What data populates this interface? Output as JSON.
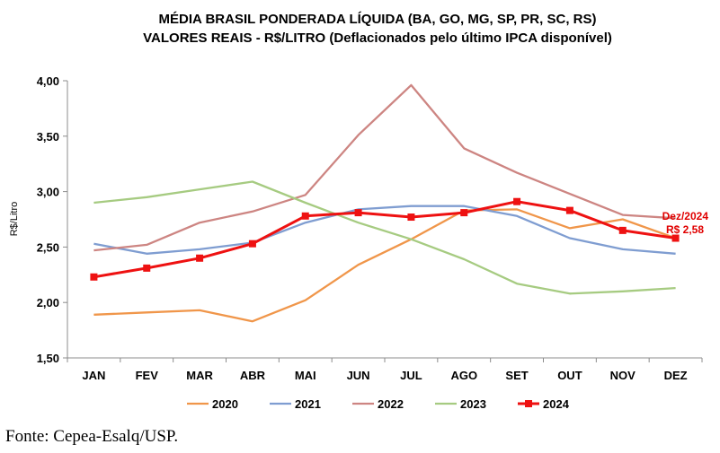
{
  "chart_data": {
    "type": "line",
    "title": "MÉDIA BRASIL PONDERADA LÍQUIDA (BA, GO, MG, SP, PR, SC, RS)",
    "subtitle": "VALORES REAIS - R$/LITRO (Deflacionados  pelo último IPCA disponível)",
    "xlabel": "",
    "ylabel": "R$/Litro",
    "ylim": [
      1.5,
      4.0
    ],
    "yticks": [
      "1,50",
      "2,00",
      "2,50",
      "3,00",
      "3,50",
      "4,00"
    ],
    "categories": [
      "JAN",
      "FEV",
      "MAR",
      "ABR",
      "MAI",
      "JUN",
      "JUL",
      "AGO",
      "SET",
      "OUT",
      "NOV",
      "DEZ"
    ],
    "grid": false,
    "legend_position": "bottom",
    "series": [
      {
        "name": "2020",
        "color": "#f0964a",
        "values": [
          1.89,
          1.91,
          1.93,
          1.83,
          2.02,
          2.34,
          2.57,
          2.83,
          2.84,
          2.67,
          2.75,
          2.58
        ]
      },
      {
        "name": "2021",
        "color": "#7f9dd1",
        "values": [
          2.53,
          2.44,
          2.48,
          2.54,
          2.72,
          2.84,
          2.87,
          2.87,
          2.78,
          2.58,
          2.48,
          2.44
        ]
      },
      {
        "name": "2022",
        "color": "#cd8582",
        "values": [
          2.47,
          2.52,
          2.72,
          2.82,
          2.97,
          3.51,
          3.96,
          3.39,
          3.17,
          2.98,
          2.79,
          2.76
        ]
      },
      {
        "name": "2023",
        "color": "#a6cb81",
        "values": [
          2.9,
          2.95,
          3.02,
          3.09,
          2.9,
          2.72,
          2.57,
          2.39,
          2.17,
          2.08,
          2.1,
          2.13
        ]
      },
      {
        "name": "2024",
        "color": "#ee1111",
        "markers": true,
        "values": [
          2.23,
          2.31,
          2.4,
          2.53,
          2.78,
          2.81,
          2.77,
          2.81,
          2.91,
          2.83,
          2.65,
          2.58
        ]
      }
    ],
    "annotations": [
      "Dez/2024",
      "R$ 2,58"
    ]
  },
  "source": "Fonte: Cepea-Esalq/USP."
}
